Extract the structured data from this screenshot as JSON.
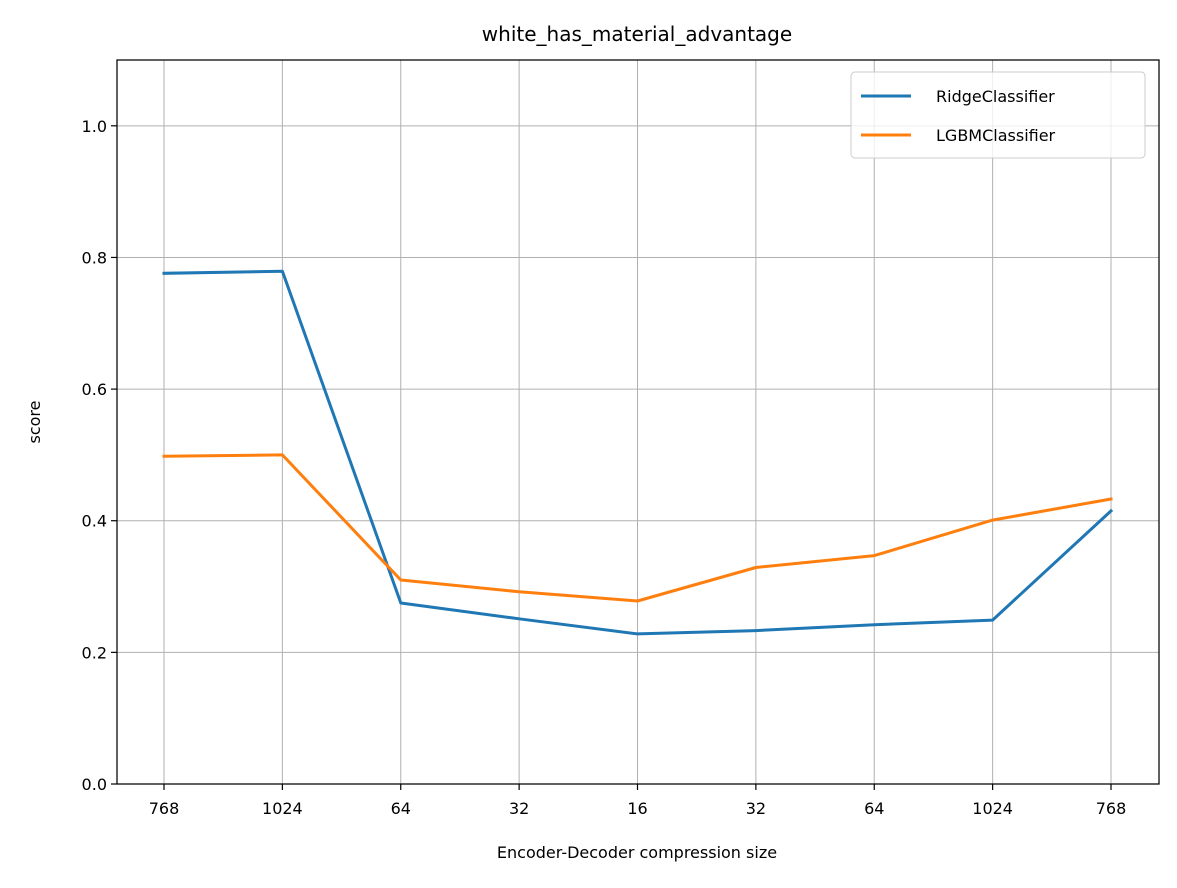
{
  "chart_data": {
    "type": "line",
    "title": "white_has_material_advantage",
    "xlabel": "Encoder-Decoder compression size",
    "ylabel": "score",
    "categories": [
      "768",
      "1024",
      "64",
      "32",
      "16",
      "32",
      "64",
      "1024",
      "768"
    ],
    "ylim": [
      0.0,
      1.1
    ],
    "yticks": [
      0.0,
      0.2,
      0.4,
      0.6,
      0.8,
      1.0
    ],
    "ytick_labels": [
      "0.0",
      "0.2",
      "0.4",
      "0.6",
      "0.8",
      "1.0"
    ],
    "grid": true,
    "legend_position": "top-right",
    "series": [
      {
        "name": "RidgeClassifier",
        "color": "#1f77b4",
        "values": [
          0.776,
          0.779,
          0.275,
          0.251,
          0.228,
          0.233,
          0.242,
          0.249,
          0.415
        ]
      },
      {
        "name": "LGBMClassifier",
        "color": "#ff7f0e",
        "values": [
          0.498,
          0.5,
          0.31,
          0.292,
          0.278,
          0.329,
          0.347,
          0.401,
          0.433
        ]
      }
    ]
  }
}
